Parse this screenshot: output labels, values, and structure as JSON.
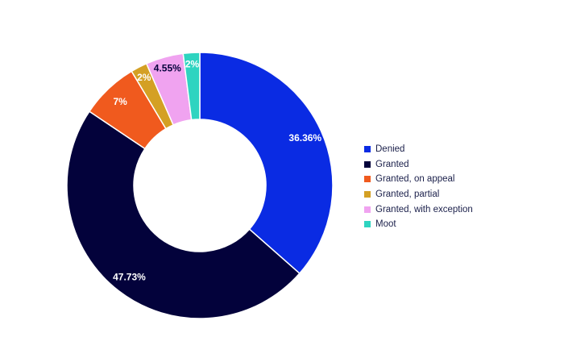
{
  "chart_data": {
    "type": "pie",
    "variant": "donut",
    "title": "",
    "legend_position": "right",
    "series": [
      {
        "labels": [
          "Denied",
          "Granted",
          "Granted, on appeal",
          "Granted, partial",
          "Granted, with exception",
          "Moot"
        ],
        "values": [
          36.36,
          47.73,
          7,
          2,
          4.55,
          2
        ],
        "value_labels": [
          "36.36%",
          "47.73%",
          "7%",
          "2%",
          "4.55%",
          "2%"
        ],
        "colors": [
          "#0a2be3",
          "#03023b",
          "#f05a1e",
          "#d4a024",
          "#f0a3f0",
          "#2ed4c0"
        ],
        "label_colors": [
          "#ffffff",
          "#ffffff",
          "#ffffff",
          "#ffffff",
          "#03023b",
          "#ffffff"
        ]
      }
    ]
  }
}
